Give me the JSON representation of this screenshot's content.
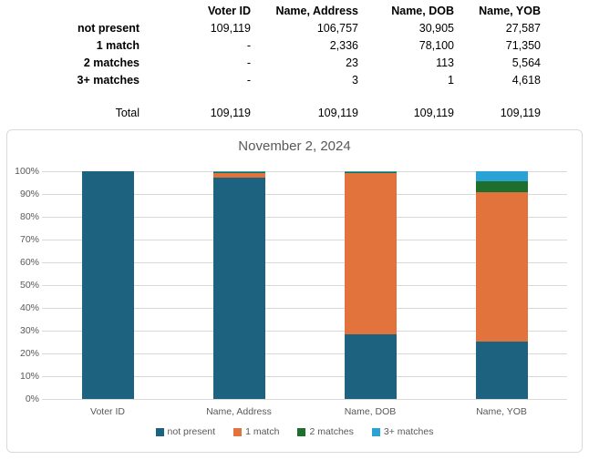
{
  "table": {
    "columns": [
      "Voter ID",
      "Name, Address",
      "Name, DOB",
      "Name, YOB"
    ],
    "rows": [
      {
        "label": "not present",
        "values": [
          "109,119",
          "106,757",
          "30,905",
          "27,587"
        ]
      },
      {
        "label": "1 match",
        "values": [
          "-",
          "2,336",
          "78,100",
          "71,350"
        ]
      },
      {
        "label": "2 matches",
        "values": [
          "-",
          "23",
          "113",
          "5,564"
        ]
      },
      {
        "label": "3+ matches",
        "values": [
          "-",
          "3",
          "1",
          "4,618"
        ]
      }
    ],
    "total_row": {
      "label": "Total",
      "values": [
        "109,119",
        "109,119",
        "109,119",
        "109,119"
      ]
    }
  },
  "chart_data": {
    "type": "bar",
    "subtype": "100%-stacked-column",
    "title": "November 2, 2024",
    "categories": [
      "Voter ID",
      "Name, Address",
      "Name, DOB",
      "Name, YOB"
    ],
    "series": [
      {
        "name": "not present",
        "color": "#1D6380",
        "values": [
          109119,
          106757,
          30905,
          27587
        ]
      },
      {
        "name": "1 match",
        "color": "#E2733C",
        "values": [
          0,
          2336,
          78100,
          71350
        ]
      },
      {
        "name": "2 matches",
        "color": "#1E6E2C",
        "values": [
          0,
          23,
          113,
          5564
        ]
      },
      {
        "name": "3+ matches",
        "color": "#29A2D6",
        "values": [
          0,
          3,
          1,
          4618
        ]
      }
    ],
    "totals": [
      109119,
      109119,
      109119,
      109119
    ],
    "y_ticks": [
      "0%",
      "10%",
      "20%",
      "30%",
      "40%",
      "50%",
      "60%",
      "70%",
      "80%",
      "90%",
      "100%"
    ],
    "ylim": [
      0,
      100
    ],
    "grid": true,
    "legend_position": "bottom",
    "text_color": "#595959",
    "gridline_color": "#D9D9D9"
  }
}
